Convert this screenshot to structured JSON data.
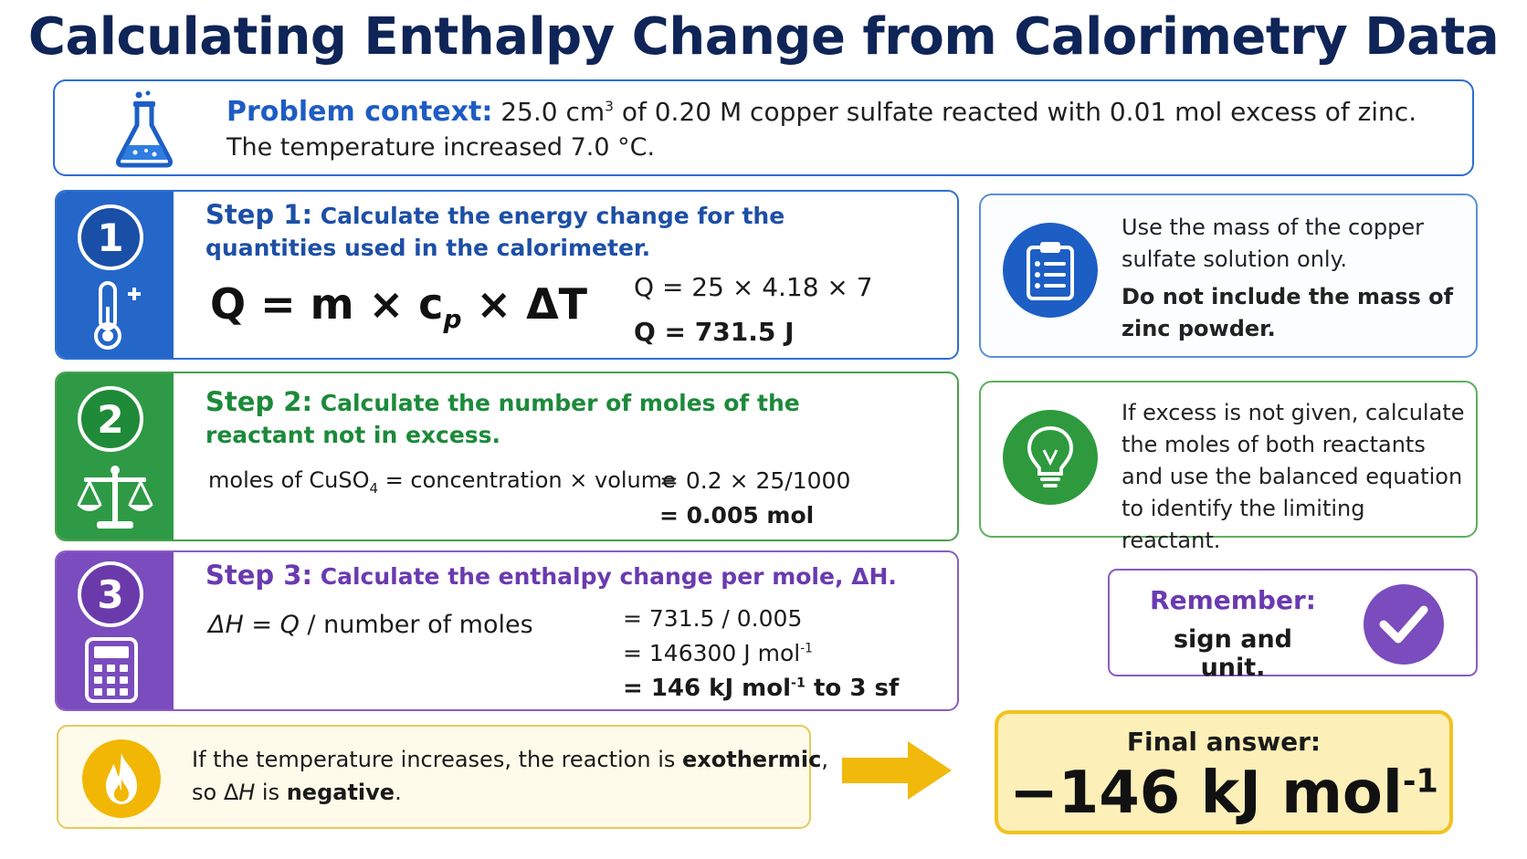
{
  "title": "Calculating Enthalpy Change from Calorimetry Data",
  "context": {
    "label": "Problem context:",
    "line1_a": " 25.0 cm",
    "line1_sup": "3",
    "line1_b": " of 0.20 M copper sulfate reacted with 0.01 mol excess of zinc.",
    "line2": "The temperature increased 7.0 °C."
  },
  "step1": {
    "number": "1",
    "label": "Step 1:",
    "text": " Calculate the energy change for the quantities used in the calorimeter.",
    "formula_a": "Q = m × c",
    "formula_sub": "p",
    "formula_b": " × ΔT",
    "calc1": "Q = 25 × 4.18 × 7",
    "calc2": "Q = 731.5 J"
  },
  "step2": {
    "number": "2",
    "label": "Step 2:",
    "text": " Calculate the number of moles of the reactant not in excess.",
    "moles_a": "moles of CuSO",
    "moles_sub": "4",
    "moles_b": " = concentration × volume",
    "calc1": "= 0.2 × 25/1000",
    "calc2": "= 0.005 mol"
  },
  "step3": {
    "number": "3",
    "label": "Step 3:",
    "text": " Calculate the enthalpy change per mole, ΔH.",
    "formula_a": "ΔH",
    "formula_b": " = ",
    "formula_c": "Q",
    "formula_d": "  / number of moles",
    "calc1": "= 731.5 / 0.005",
    "calc2": "= 146300 J mol",
    "calc2_sup": "-1",
    "calc3_a": "= 146 kJ mol",
    "calc3_sup": "-1",
    "calc3_b": " to 3 sf"
  },
  "note1": {
    "text": "Use the mass of the copper sulfate solution only.",
    "bold": "Do not include the mass of zinc powder."
  },
  "note2": {
    "text": "If excess is not given, calculate the moles of both reactants and use the balanced equation to identify the limiting reactant."
  },
  "remember": {
    "label": "Remember:",
    "text": "sign and unit."
  },
  "exo": {
    "t1_a": "If the temperature increases, the reaction is ",
    "t1_b": "exothermic",
    "t1_c": ",",
    "t2_a": "so Δ",
    "t2_b": "H",
    "t2_c": " is ",
    "t2_d": "negative",
    "t2_e": "."
  },
  "final": {
    "label": "Final answer:",
    "value": "−146 kJ mol",
    "value_sup": "-1"
  },
  "colors": {
    "title": "#0f2457",
    "step1": "#2566c9",
    "step2": "#2e9a45",
    "step3": "#7a4cbd",
    "final_fill": "#fcefb8",
    "final_border": "#f2c21f"
  }
}
